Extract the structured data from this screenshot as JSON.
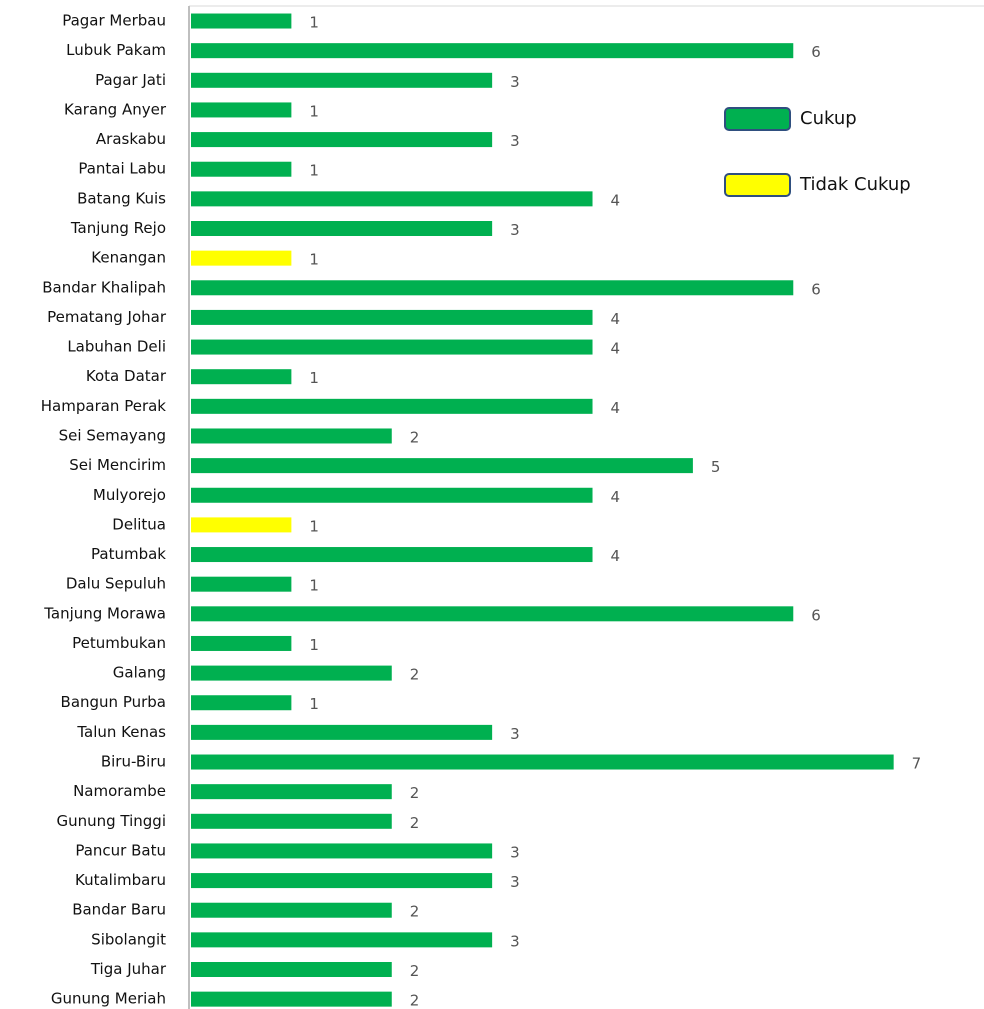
{
  "chart_data": {
    "type": "bar",
    "orientation": "horizontal",
    "categories": [
      "Pagar Merbau",
      "Lubuk Pakam",
      "Pagar Jati",
      "Karang Anyer",
      "Araskabu",
      "Pantai Labu",
      "Batang Kuis",
      "Tanjung Rejo",
      "Kenangan",
      "Bandar Khalipah",
      "Pematang Johar",
      "Labuhan Deli",
      "Kota Datar",
      "Hamparan Perak",
      "Sei Semayang",
      "Sei Mencirim",
      "Mulyorejo",
      "Delitua",
      "Patumbak",
      "Dalu Sepuluh",
      "Tanjung Morawa",
      "Petumbukan",
      "Galang",
      "Bangun Purba",
      "Talun Kenas",
      "Biru-Biru",
      "Namorambe",
      "Gunung Tinggi",
      "Pancur Batu",
      "Kutalimbaru",
      "Bandar Baru",
      "Sibolangit",
      "Tiga Juhar",
      "Gunung Meriah"
    ],
    "series": [
      {
        "name": "Cukup",
        "color": "#00b050",
        "values": [
          1,
          6,
          3,
          1,
          3,
          1,
          4,
          3,
          null,
          6,
          4,
          4,
          1,
          4,
          2,
          5,
          4,
          null,
          4,
          1,
          6,
          1,
          2,
          1,
          3,
          7,
          2,
          2,
          3,
          3,
          2,
          3,
          2,
          2
        ]
      },
      {
        "name": "Tidak Cukup",
        "color": "#ffff00",
        "values": [
          null,
          null,
          null,
          null,
          null,
          null,
          null,
          null,
          1,
          null,
          null,
          null,
          null,
          null,
          null,
          null,
          null,
          1,
          null,
          null,
          null,
          null,
          null,
          null,
          null,
          null,
          null,
          null,
          null,
          null,
          null,
          null,
          null,
          null
        ]
      }
    ],
    "xlim": [
      0,
      7.9
    ],
    "legend": "right"
  }
}
